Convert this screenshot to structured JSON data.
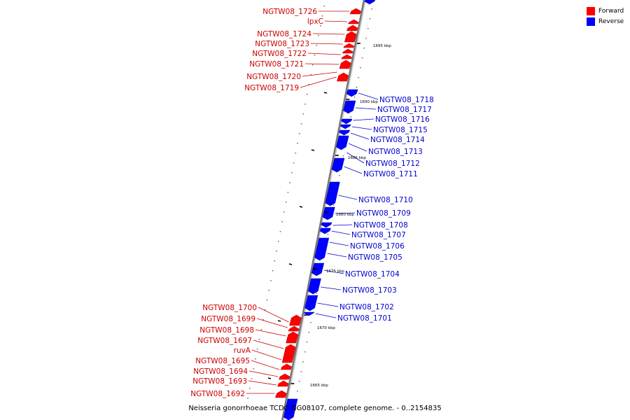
{
  "legend": [
    {
      "label": "Forward",
      "color": "#ff0000"
    },
    {
      "label": "Reverse",
      "color": "#0000ff"
    }
  ],
  "caption": "Neisseria gonorrhoeae TCDC-NG08107, complete genome. - 0..2154835",
  "scale_labels": [
    "1695 kbp",
    "1690 kbp",
    "1685 kbp",
    "1680 kbp",
    "1675 kbp",
    "1670 kbp",
    "1665 kbp"
  ],
  "forward_genes": [
    "NGTW08_1726",
    "lpxC",
    "NGTW08_1724",
    "NGTW08_1723",
    "NGTW08_1722",
    "NGTW08_1721",
    "NGTW08_1720",
    "NGTW08_1719",
    "NGTW08_1700",
    "NGTW08_1699",
    "NGTW08_1698",
    "NGTW08_1697",
    "ruvA",
    "NGTW08_1695",
    "NGTW08_1694",
    "NGTW08_1693",
    "NGTW08_1692"
  ],
  "reverse_genes": [
    "NGTW08_1718",
    "NGTW08_1717",
    "NGTW08_1716",
    "NGTW08_1715",
    "NGTW08_1714",
    "NGTW08_1713",
    "NGTW08_1712",
    "NGTW08_1711",
    "NGTW08_1710",
    "NGTW08_1709",
    "NGTW08_1708",
    "NGTW08_1707",
    "NGTW08_1706",
    "NGTW08_1705",
    "NGTW08_1704",
    "NGTW08_1703",
    "NGTW08_1702",
    "NGTW08_1701"
  ],
  "colors": {
    "forward": "#ff0000",
    "reverse": "#0000ff",
    "axis": "#777777",
    "forward_label": "#cc0000",
    "reverse_label": "#0000cc"
  }
}
